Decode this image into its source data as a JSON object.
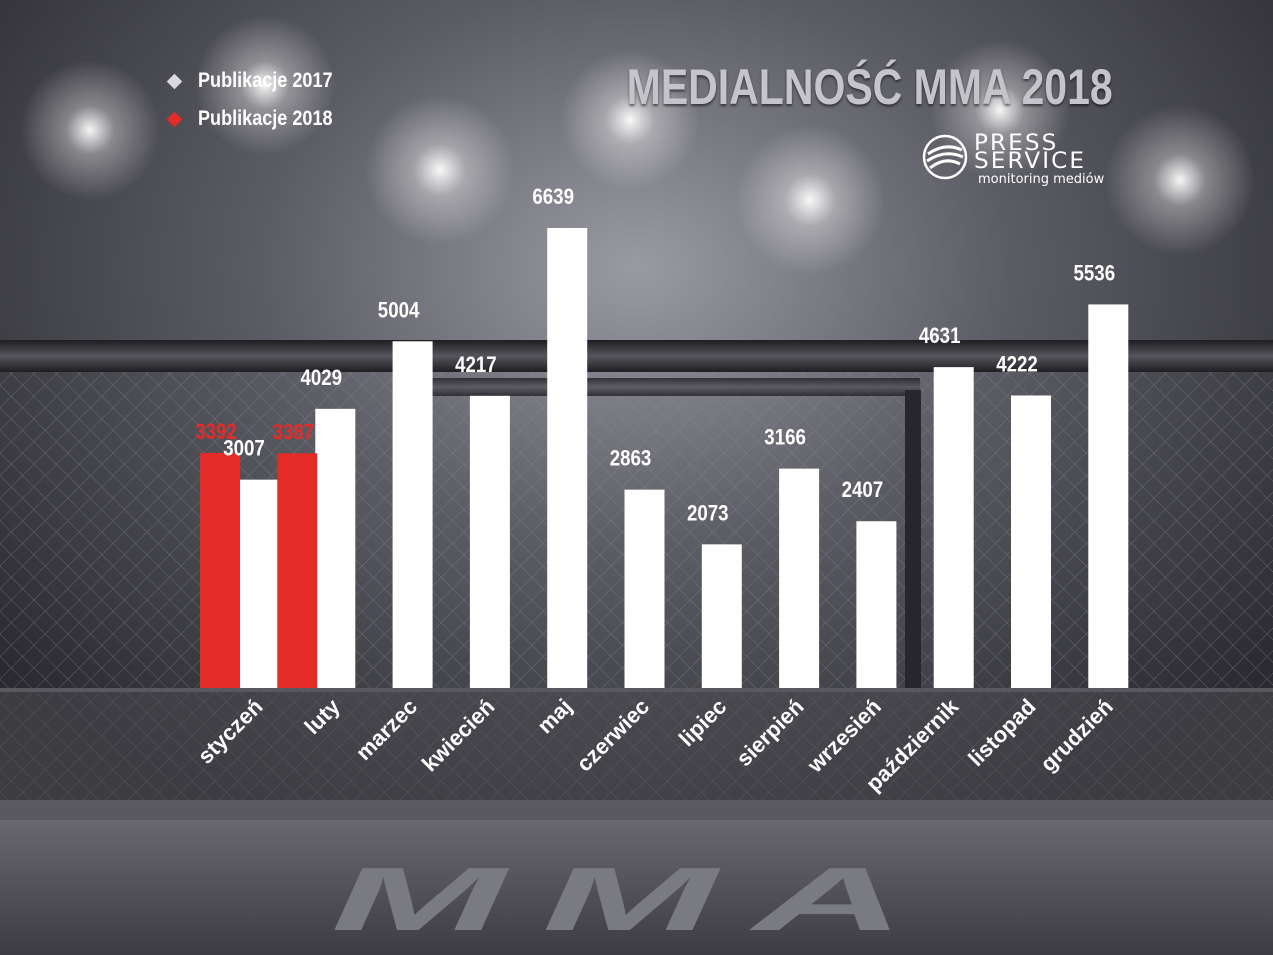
{
  "title": "MEDIALNOŚĆ MMA 2018",
  "logo": {
    "line1": "PRESS",
    "line2": "SERVICE",
    "tagline": "monitoring mediów"
  },
  "floor_text": "MMA",
  "colors": {
    "series_2017": "#ffffff",
    "series_2018": "#e52b27",
    "title": "#c4c4ca",
    "floor_text": "#7a7a82"
  },
  "chart_data": {
    "type": "bar",
    "title": "MEDIALNOŚĆ MMA 2018",
    "xlabel": "",
    "ylabel": "",
    "categories": [
      "styczeń",
      "luty",
      "marzec",
      "kwiecień",
      "maj",
      "czerwiec",
      "lipiec",
      "sierpień",
      "wrzesień",
      "październik",
      "listopad",
      "grudzień"
    ],
    "ylim": [
      0,
      6639
    ],
    "grid": false,
    "legend_position": "top-left",
    "series": [
      {
        "name": "Publikacje 2017",
        "color": "#ffffff",
        "values": [
          3007,
          4029,
          5004,
          4217,
          6639,
          2863,
          2073,
          3166,
          2407,
          4631,
          4222,
          5536
        ]
      },
      {
        "name": "Publikacje 2018",
        "color": "#e52b27",
        "values": [
          3392,
          3387,
          null,
          null,
          null,
          null,
          null,
          null,
          null,
          null,
          null,
          null
        ]
      }
    ]
  }
}
